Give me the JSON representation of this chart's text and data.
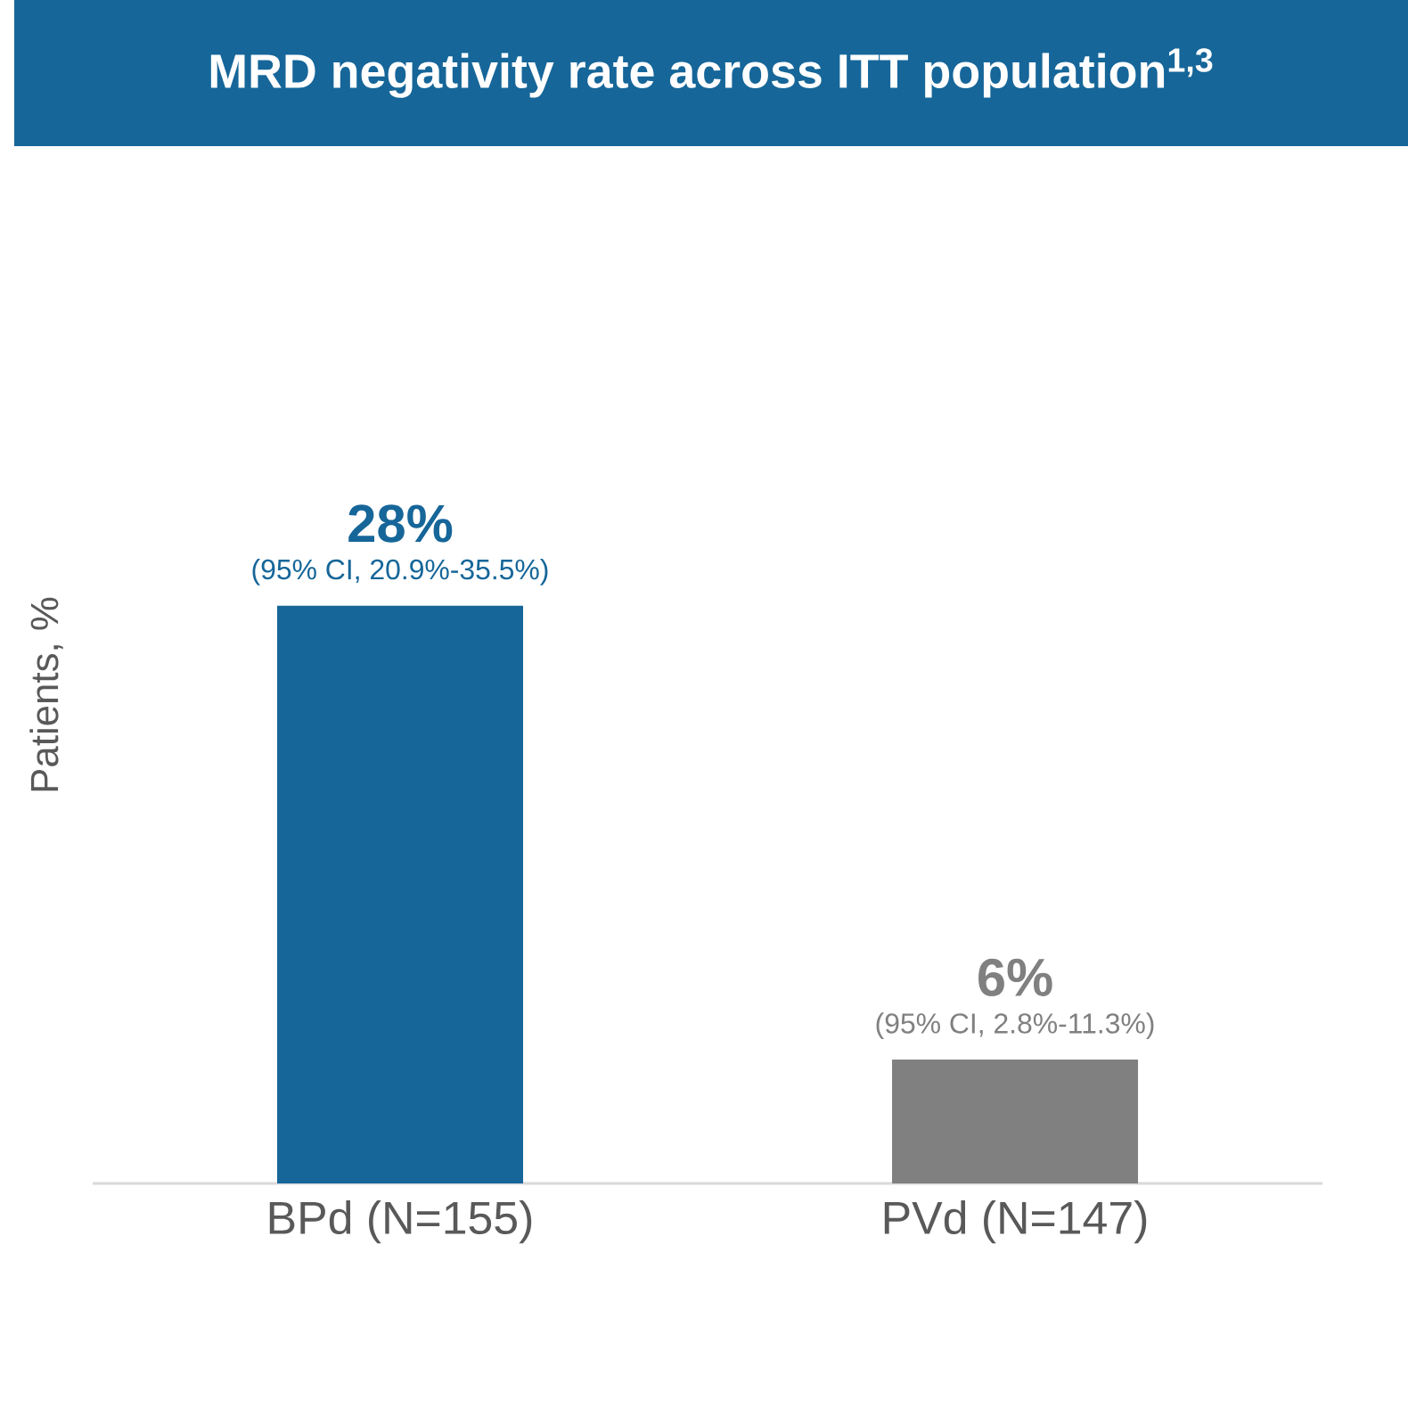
{
  "chart_data": {
    "type": "bar",
    "title": "MRD negativity rate across ITT population$^{1,3}$",
    "ylabel": "Patients, %",
    "categories": [
      "BPd (N=155)",
      "PVd (N=147)"
    ],
    "values": [
      28,
      6
    ],
    "colors": [
      "#166699",
      "#808080"
    ],
    "value_labels": [
      "28%",
      "6%"
    ],
    "annotations": [
      {
        "text": "(95% CI, 20.9%-35.5%)",
        "x": "BPd (N=155)",
        "y": 28
      },
      {
        "text": "(95% CI, 2.8%-11.3%)",
        "x": "PVd (N=147)",
        "y": 6
      }
    ]
  }
}
